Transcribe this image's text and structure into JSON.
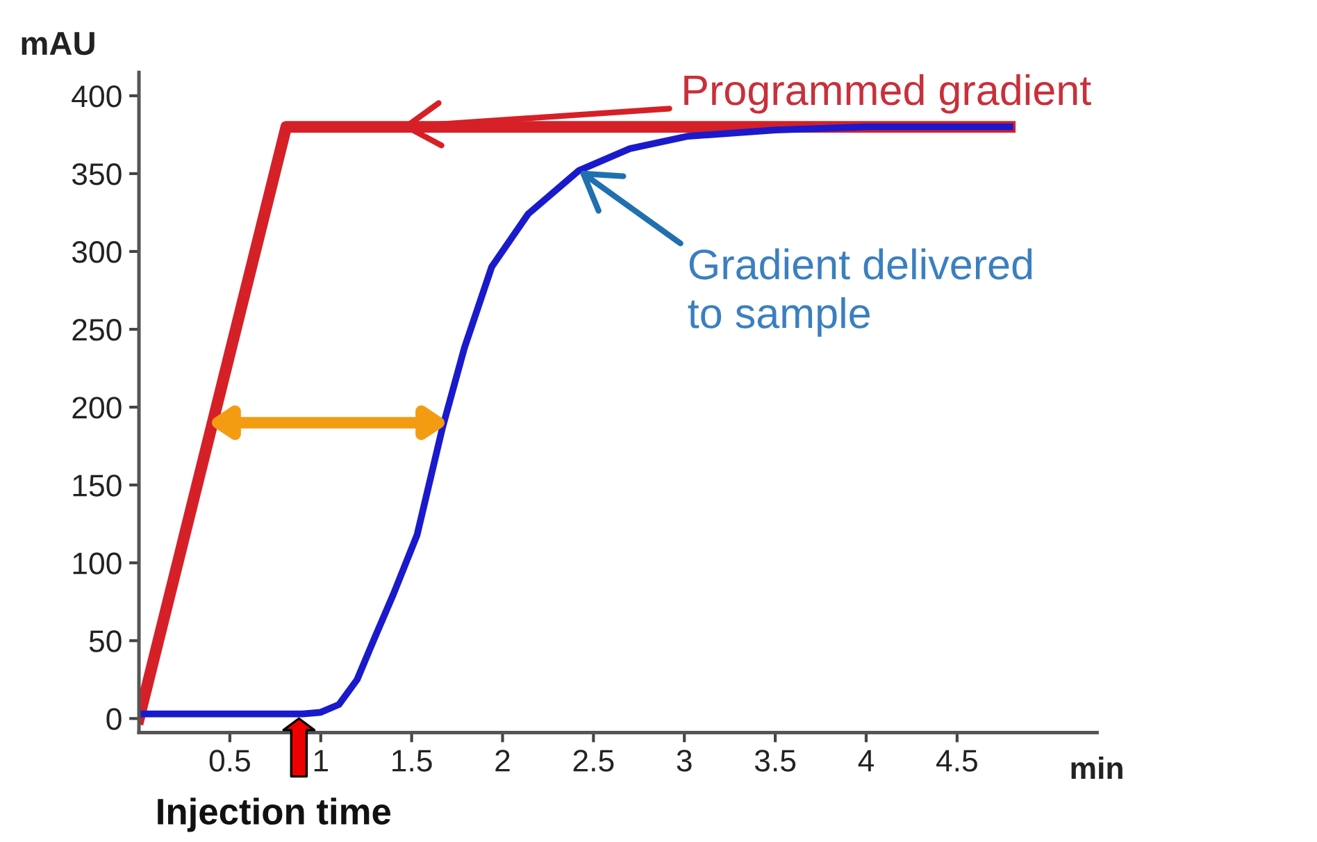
{
  "chart_data": {
    "type": "line",
    "xlabel": "min",
    "ylabel": "mAU",
    "xlim": [
      0,
      5.27
    ],
    "ylim": [
      -9,
      415
    ],
    "xticks": [
      0.5,
      1,
      1.5,
      2,
      2.5,
      3,
      3.5,
      4,
      4.5
    ],
    "yticks": [
      0,
      50,
      100,
      150,
      200,
      250,
      300,
      350,
      400
    ],
    "grid": false,
    "legend": false,
    "marker": "none",
    "line_style": "solid",
    "series": [
      {
        "color": "#d62027",
        "x": [
          0,
          0.81,
          4.79
        ],
        "values": [
          0,
          380,
          380
        ]
      },
      {
        "color": "#1a1acc",
        "x": [
          0,
          0.9,
          1.0,
          1.1,
          1.2,
          1.29,
          1.4,
          1.53,
          1.67,
          1.79,
          1.94,
          2.14,
          2.42,
          2.7,
          3.02,
          3.5,
          4.0,
          4.79
        ],
        "values": [
          3,
          3,
          4,
          9,
          25,
          50,
          80,
          118,
          187,
          238,
          290,
          324,
          352,
          366,
          374,
          378,
          380,
          380
        ]
      }
    ],
    "annotations": [
      {
        "text": "Programmed gradient",
        "x": 1.44,
        "y": 380
      },
      {
        "text": "Gradient delivered\nto sample",
        "x": 2.42,
        "y": 352
      },
      {
        "text": "Injection time",
        "x": 0.88,
        "y": 0
      }
    ]
  }
}
